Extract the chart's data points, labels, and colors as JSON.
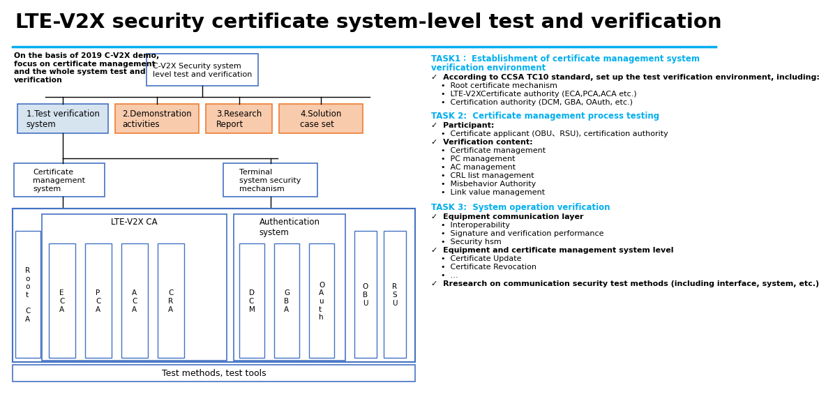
{
  "title": "LTE-V2X security certificate system-level test and verification",
  "cyan": "#00AEEF",
  "blue_fill": "#D6E4F0",
  "orange_fill": "#F8CBAD",
  "blue_border": "#4472C4",
  "orange_border": "#ED7D31",
  "black": "#000000",
  "white": "#ffffff",
  "intro_text": "On the basis of 2019 C-V2X demo,\nfocus on certificate management\nand the whole system test and\nverification",
  "top_box": "C-V2X Security system\nlevel test and verification",
  "branch_boxes": [
    {
      "label": "1.Test verification\nsystem",
      "fill": "#D6E4F0",
      "border": "#4472C4"
    },
    {
      "label": "2.Demonstration\nactivities",
      "fill": "#F8CBAD",
      "border": "#ED7D31"
    },
    {
      "label": "3.Research\nReport",
      "fill": "#F8CBAD",
      "border": "#ED7D31"
    },
    {
      "label": "4.Solution\ncase set",
      "fill": "#F8CBAD",
      "border": "#ED7D31"
    }
  ],
  "mid_boxes": [
    "Certificate\nmanagement\nsystem",
    "Terminal\nsystem security\nmechanism"
  ],
  "lte_label": "LTE-V2X CA",
  "auth_label": "Authentication\nsystem",
  "root_ca": "R\no\no\nt\n\nC\nA",
  "ca_items": [
    "E\nC\nA",
    "P\nC\nA",
    "A\nC\nA",
    "C\nR\nA"
  ],
  "auth_items": [
    "D\nC\nM",
    "G\nB\nA",
    "O\nA\nu\nt\nh"
  ],
  "terminal_items": [
    "O\nB\nU",
    "R\nS\nU"
  ],
  "bottom_bar": "Test methods, test tools",
  "task1_title": "TASK1： Establishment of certificate management system verification environment",
  "task1_lines": [
    {
      "text": "✓  According to CCSA TC10 standard, set up the test verification environment, including:",
      "bold": true
    },
    {
      "text": "    •  Root certificate mechanism",
      "bold": false
    },
    {
      "text": "    •  LTE-V2XCertificate authority (ECA,PCA,ACA etc.)",
      "bold": false
    },
    {
      "text": "    •  Certification authority (DCM, GBA, OAuth, etc.)",
      "bold": false
    }
  ],
  "task2_title": "TASK 2:  Certificate management process testing",
  "task2_lines": [
    {
      "text": "✓  Participant:",
      "bold": true
    },
    {
      "text": "    •  Certificate applicant (OBU、RSU), certification authority",
      "bold": false
    },
    {
      "text": "✓  Verification content:",
      "bold": true
    },
    {
      "text": "    •  Certificate management",
      "bold": false
    },
    {
      "text": "    •  PC management",
      "bold": false
    },
    {
      "text": "    •  AC management",
      "bold": false
    },
    {
      "text": "    •  CRL list management",
      "bold": false
    },
    {
      "text": "    •  Misbehavior Authority",
      "bold": false
    },
    {
      "text": "    •  Link value management",
      "bold": false
    }
  ],
  "task3_title": "TASK 3:  System operation verification",
  "task3_lines": [
    {
      "text": "✓  Equipment communication layer",
      "bold": true
    },
    {
      "text": "    •  Interoperability",
      "bold": false
    },
    {
      "text": "    •  Signature and verification performance",
      "bold": false
    },
    {
      "text": "    •  Security hsm",
      "bold": false
    },
    {
      "text": "✓  Equipment and certificate management system level",
      "bold": true
    },
    {
      "text": "    •  Certificate Update",
      "bold": false
    },
    {
      "text": "    •  Certificate Revocation",
      "bold": false
    },
    {
      "text": "    •  …",
      "bold": false
    },
    {
      "text": "✓  Rresearch on communication security test methods (including interface, system, etc.)",
      "bold": true
    }
  ]
}
